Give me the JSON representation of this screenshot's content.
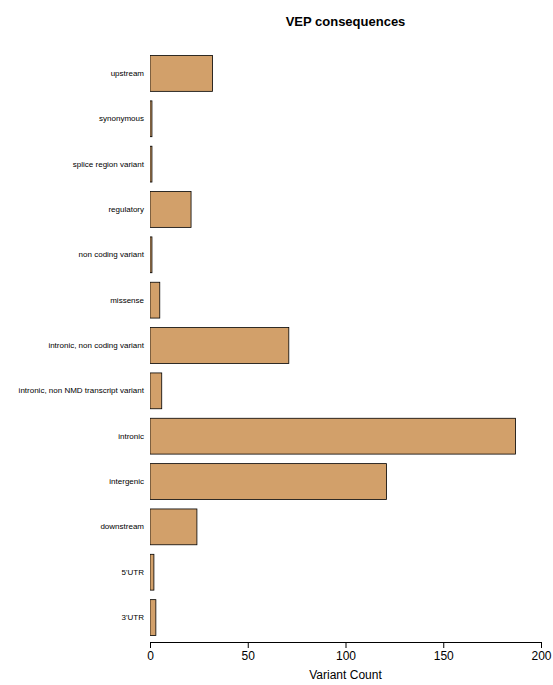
{
  "chart_data": {
    "type": "bar",
    "title": "VEP consequences",
    "x_label": "Variant Count",
    "orientation": "horizontal",
    "categories": [
      "upstream",
      "synonymous",
      "splice region variant",
      "regulatory",
      "non coding variant",
      "missense",
      "intronic, non coding variant",
      "intronic, non NMD transcript variant",
      "intronic",
      "intergenic",
      "downstream",
      "5'UTR",
      "3'UTR"
    ],
    "values": [
      32,
      1,
      1,
      21,
      1,
      5,
      71,
      6,
      187,
      121,
      24,
      2,
      3
    ],
    "color": "#d2a06a",
    "xlim": [
      0,
      200
    ],
    "xticks": [
      0,
      50,
      100,
      150,
      200
    ],
    "grid": false
  }
}
